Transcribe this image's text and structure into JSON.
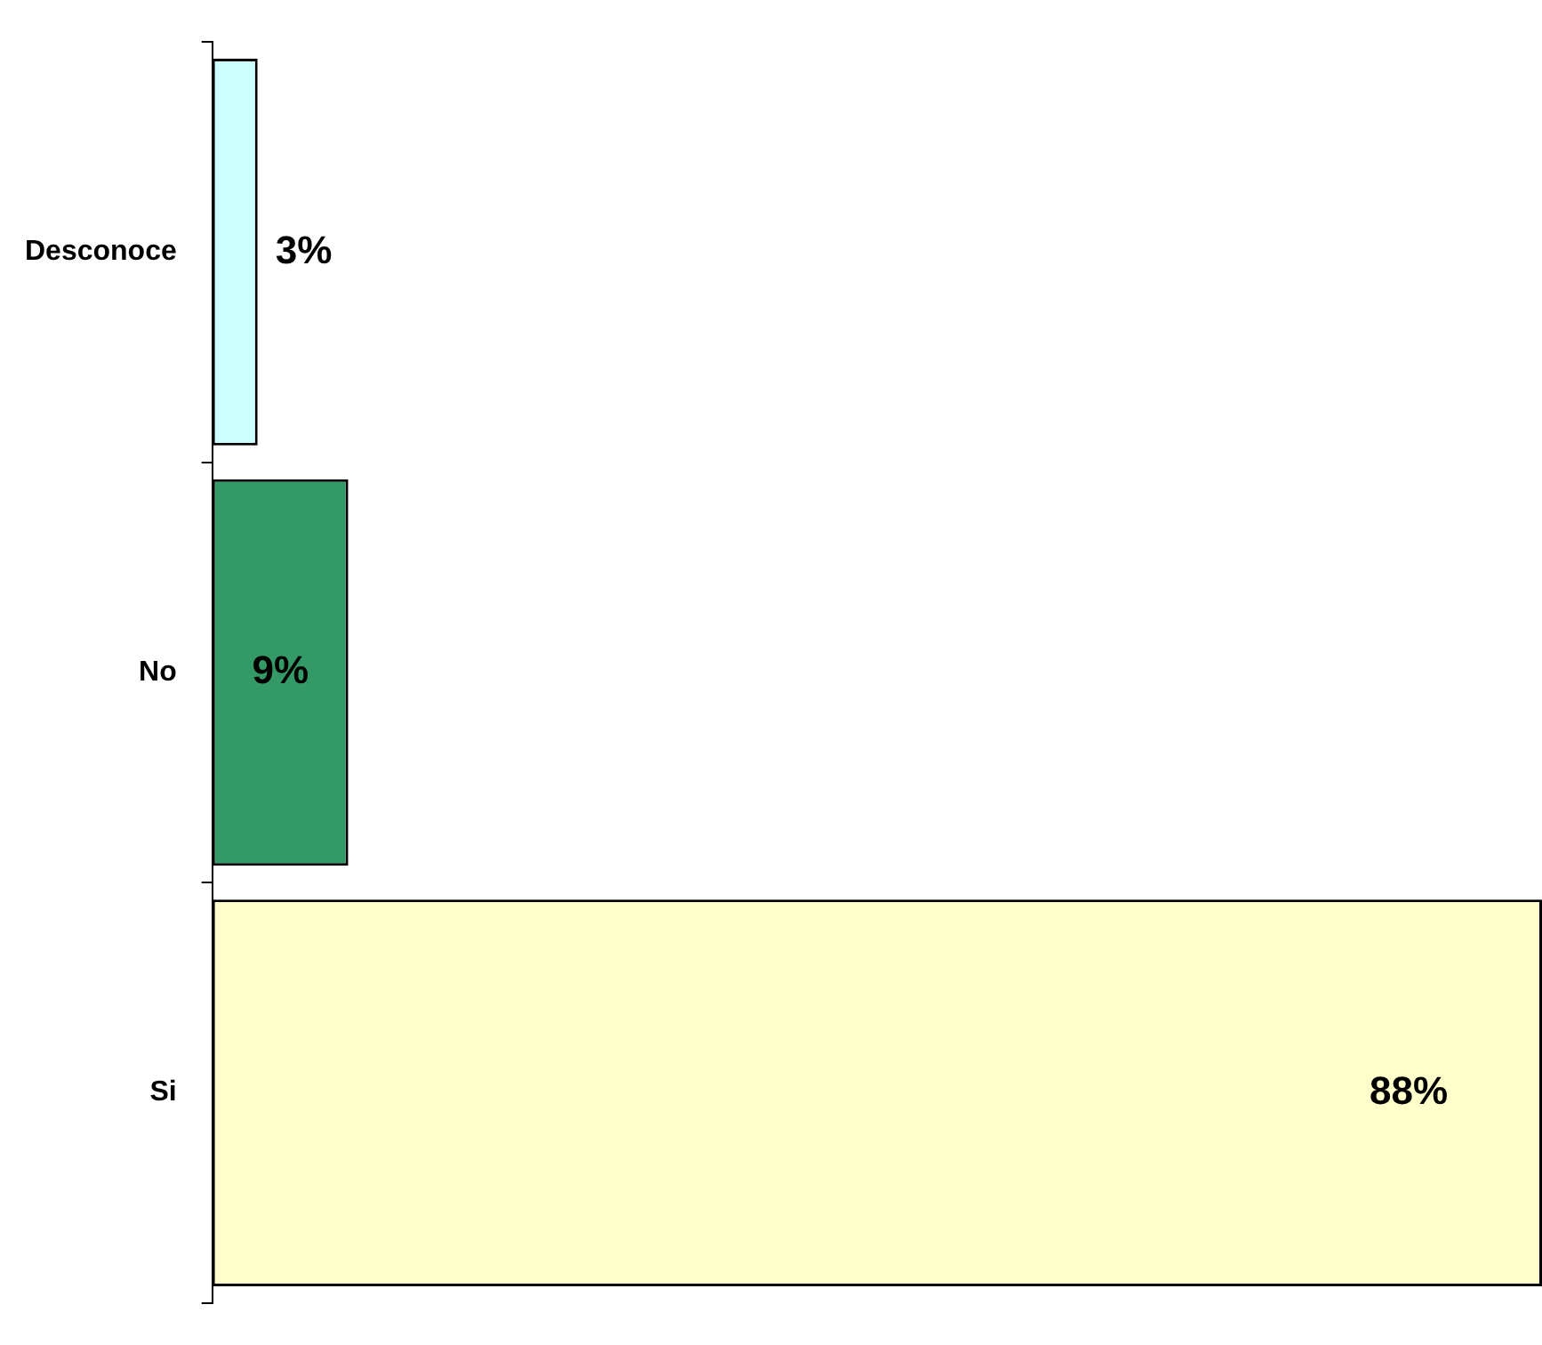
{
  "chart_data": {
    "type": "bar",
    "orientation": "horizontal",
    "categories": [
      "Desconoce",
      "No",
      "Si"
    ],
    "values": [
      3,
      9,
      88
    ],
    "colors": [
      "#ccffff",
      "#339966",
      "#ffffcc"
    ],
    "value_labels": [
      "3%",
      "9%",
      "88%"
    ],
    "grid": false,
    "legend": false
  }
}
